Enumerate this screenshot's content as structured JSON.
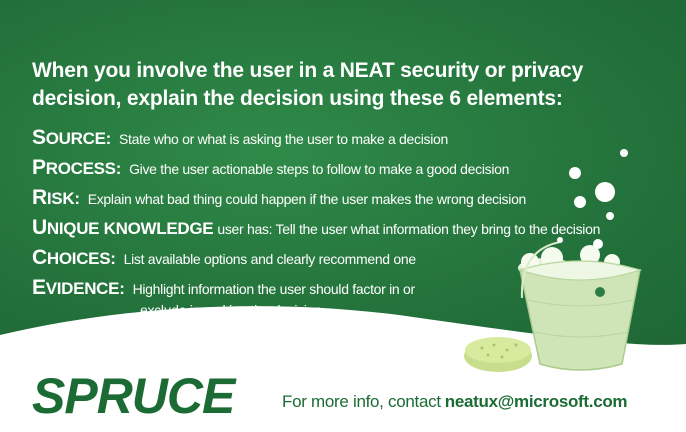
{
  "headline": "When you involve the user in a NEAT security or privacy decision, explain the decision using these 6 elements:",
  "elements": [
    {
      "initial": "S",
      "rest": "OURCE:",
      "description": "State who or what is asking the user to make a decision"
    },
    {
      "initial": "P",
      "rest": "ROCESS:",
      "description": "Give the user actionable steps to follow to make a good decision"
    },
    {
      "initial": "R",
      "rest": "ISK:",
      "description": "Explain what bad thing could happen if the user makes the wrong decision"
    },
    {
      "initial": "U",
      "rest": "NIQUE KNOWLEDGE",
      "description": "user has: Tell the user what information they bring to the decision"
    },
    {
      "initial": "C",
      "rest": "HOICES:",
      "description": "List available options and clearly recommend one"
    },
    {
      "initial": "E",
      "rest": "VIDENCE:",
      "description": "Highlight information the user should factor in or",
      "description_cont": "exclude in making the decision"
    }
  ],
  "footer": {
    "logo": "SPRUCE",
    "contact_prefix": "For more info, contact",
    "contact_email": "neatux@microsoft.com"
  },
  "colors": {
    "background": "#226f3a",
    "text": "#ffffff",
    "accent": "#1c6b34"
  }
}
